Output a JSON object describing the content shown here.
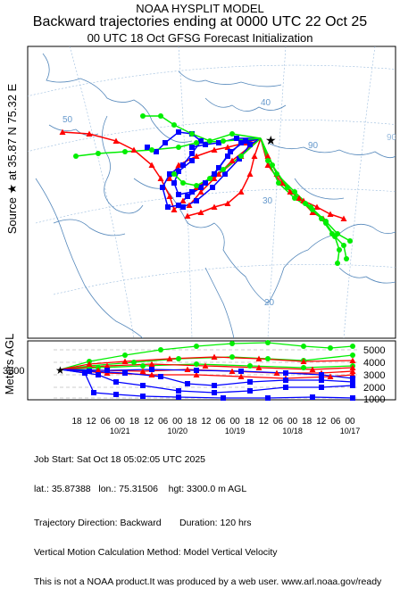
{
  "header": {
    "model": "NOAA HYSPLIT MODEL",
    "title": "Backward trajectories ending at 0000 UTC 22 Oct 25",
    "subtitle": "00 UTC 18 Oct    GFSG  Forecast Initialization"
  },
  "source_label": "Source ★ at   35.87 N   75.32 E",
  "map": {
    "lat_labels": [
      "40",
      "30",
      "20"
    ],
    "lon_labels": [
      "50",
      "90"
    ],
    "colors": {
      "red": "#ff0000",
      "blue": "#0000ff",
      "green": "#00ee00",
      "land": "#6699cc"
    }
  },
  "vertical": {
    "y_axis_label": "Meters AGL",
    "source_height": "3300",
    "right_ticks": [
      "5000",
      "4000",
      "3000",
      "2000",
      "1000"
    ],
    "hour_ticks": [
      "18",
      "12",
      "06",
      "00",
      "18",
      "12",
      "06",
      "00",
      "18",
      "12",
      "06",
      "00",
      "18",
      "12",
      "06",
      "00",
      "18",
      "12",
      "06",
      "00"
    ],
    "date_ticks": [
      "10/21",
      "10/20",
      "10/19",
      "10/18",
      "10/17"
    ]
  },
  "footer": {
    "job_start": "Job Start: Sat Oct 18 05:02:05 UTC 2025",
    "location": "lat.: 35.87388   lon.: 75.31506    hgt: 3300.0 m AGL",
    "direction": "Trajectory Direction: Backward       Duration: 120 hrs",
    "vertical_method": "Vertical Motion Calculation Method: Model Vertical Velocity",
    "disclaimer": "This is not a NOAA product.It was produced by a web user. www.arl.noaa.gov/ready"
  }
}
